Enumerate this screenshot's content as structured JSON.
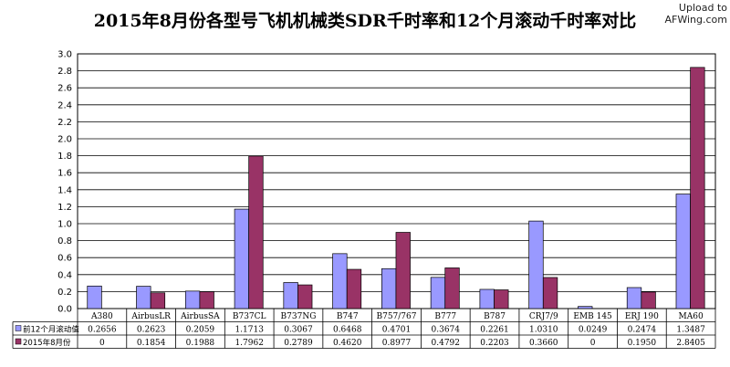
{
  "title": "2015年8月份各型号飞机机械类SDR千时率和12个月滚动千时率对比",
  "watermark": {
    "line1": "Upload to",
    "line2": "AFWing.com"
  },
  "colors": {
    "series1": "#9999ff",
    "series2": "#993366",
    "grid": "#000000"
  },
  "chart_data": {
    "type": "bar",
    "categories": [
      "A380",
      "AirbusLR",
      "AirbusSA",
      "B737CL",
      "B737NG",
      "B747",
      "B757/767",
      "B777",
      "B787",
      "CRJ7/9",
      "EMB 145",
      "ERJ 190",
      "MA60"
    ],
    "series": [
      {
        "name": "前12个月滚动值",
        "values": [
          "0.2656",
          "0.2623",
          "0.2059",
          "1.1713",
          "0.3067",
          "0.6468",
          "0.4701",
          "0.3674",
          "0.2261",
          "1.0310",
          "0.0249",
          "0.2474",
          "1.3487"
        ]
      },
      {
        "name": "2015年8月份",
        "values": [
          "0",
          "0.1854",
          "0.1988",
          "1.7962",
          "0.2789",
          "0.4620",
          "0.8977",
          "0.4792",
          "0.2203",
          "0.3660",
          "0",
          "0.1950",
          "2.8405"
        ]
      }
    ],
    "yticks": [
      "0.0",
      "0.2",
      "0.4",
      "0.6",
      "0.8",
      "1.0",
      "1.2",
      "1.4",
      "1.6",
      "1.8",
      "2.0",
      "2.2",
      "2.4",
      "2.6",
      "2.8",
      "3.0"
    ],
    "ylim": [
      0,
      3.0
    ],
    "grid": true,
    "legend": "data-table"
  }
}
